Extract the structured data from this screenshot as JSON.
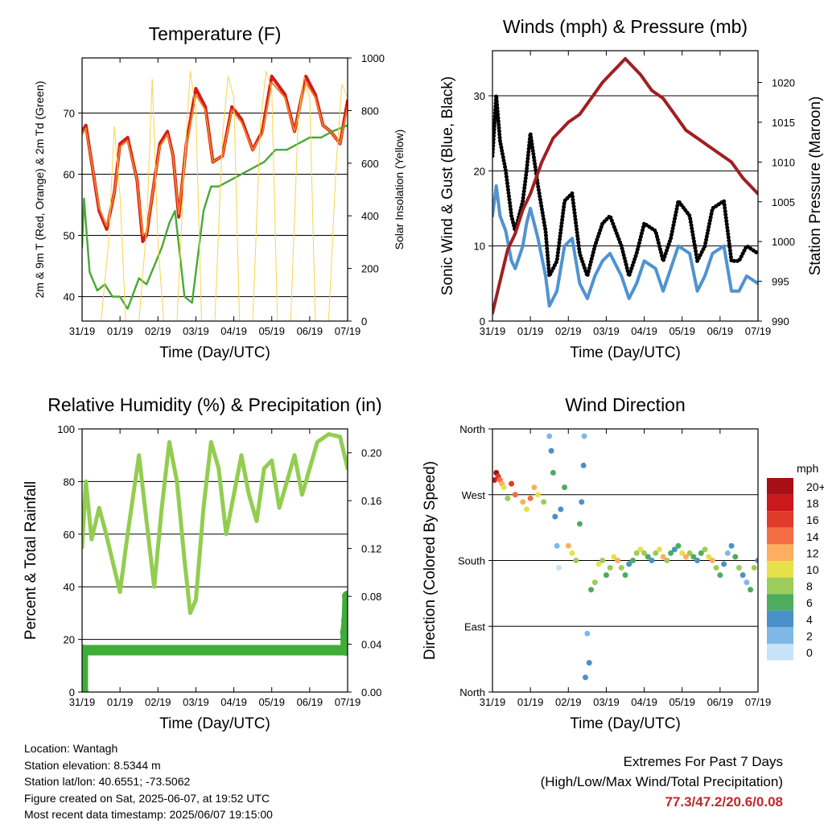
{
  "colors": {
    "temp_2m": "#d7191c",
    "temp_9m": "#f07f1e",
    "dewpoint": "#4aa936",
    "insolation": "#f7d548",
    "gust": "#000000",
    "wind": "#4f93cf",
    "pressure": "#a01f22",
    "humidity": "#92cd4f",
    "rainfall": "#3fae38",
    "extremes_text": "#c0282d"
  },
  "chart_data": [
    {
      "id": "temperature",
      "type": "line",
      "title": "Temperature (F)",
      "xlabel": "Time (Day/UTC)",
      "ylabel": "2m & 9m T (Red, Orange) & 2m Td (Green)",
      "y2label": "Solar Insolation (Yellow)",
      "x_tick_labels": [
        "31/19",
        "01/19",
        "02/19",
        "03/19",
        "04/19",
        "05/19",
        "06/19",
        "07/19"
      ],
      "ylim": [
        36,
        79
      ],
      "y_ticks": [
        40,
        50,
        60,
        70
      ],
      "y2lim": [
        0,
        1000
      ],
      "y2_ticks": [
        0,
        200,
        400,
        600,
        800,
        1000
      ],
      "grid": "horizontal",
      "series": [
        {
          "key": "temp_2m",
          "axis": "left",
          "x": [
            0,
            0.1,
            0.25,
            0.45,
            0.65,
            0.85,
            1.0,
            1.2,
            1.45,
            1.6,
            1.7,
            2.05,
            2.25,
            2.4,
            2.55,
            2.75,
            3.0,
            3.25,
            3.45,
            3.7,
            3.95,
            4.2,
            4.5,
            4.75,
            5.0,
            5.35,
            5.6,
            5.9,
            6.15,
            6.35,
            6.55,
            6.8,
            7.0
          ],
          "values": [
            67,
            68,
            62,
            54,
            51,
            57,
            65,
            66,
            59,
            49,
            50,
            65,
            67,
            63,
            53,
            65,
            74,
            71,
            62,
            63,
            71,
            69,
            64,
            67,
            76,
            73,
            67,
            76,
            73,
            68,
            67,
            65,
            72
          ]
        },
        {
          "key": "temp_9m",
          "axis": "left",
          "x": [
            0,
            0.1,
            0.25,
            0.45,
            0.65,
            0.85,
            1.0,
            1.2,
            1.45,
            1.6,
            1.7,
            2.05,
            2.25,
            2.4,
            2.55,
            2.75,
            3.0,
            3.25,
            3.45,
            3.7,
            3.95,
            4.2,
            4.5,
            4.75,
            5.0,
            5.35,
            5.6,
            5.9,
            6.15,
            6.35,
            6.55,
            6.8,
            7.0
          ],
          "values": [
            66.5,
            67.5,
            62,
            54.5,
            51.5,
            57,
            64.5,
            65.5,
            59,
            50,
            50.5,
            64.5,
            66.5,
            63,
            53.5,
            64.5,
            73,
            70.5,
            62,
            63,
            70.5,
            68.5,
            64,
            66.5,
            75,
            72.5,
            67,
            75,
            72.5,
            68,
            67,
            65,
            71
          ]
        },
        {
          "key": "dewpoint",
          "axis": "left",
          "x": [
            0,
            0.05,
            0.2,
            0.4,
            0.6,
            0.8,
            1.0,
            1.2,
            1.5,
            1.7,
            1.9,
            2.1,
            2.3,
            2.45,
            2.7,
            2.9,
            3.0,
            3.2,
            3.4,
            3.6,
            3.9,
            4.2,
            4.5,
            4.8,
            5.1,
            5.4,
            5.7,
            6.0,
            6.3,
            6.6,
            7.0
          ],
          "values": [
            48,
            56,
            44,
            41,
            42,
            40,
            40,
            38,
            43,
            42,
            45,
            48,
            52,
            54,
            40,
            39,
            44,
            54,
            58,
            58,
            59,
            60,
            61,
            62,
            64,
            64,
            65,
            66,
            66,
            67,
            68
          ]
        },
        {
          "key": "insolation",
          "axis": "right",
          "x": [
            0,
            0.5,
            0.7,
            0.85,
            1.0,
            1.15,
            1.3,
            1.5,
            1.7,
            1.85,
            2.0,
            2.15,
            2.3,
            2.5,
            2.7,
            2.85,
            3.0,
            3.15,
            3.3,
            3.5,
            3.7,
            3.85,
            4.0,
            4.15,
            4.3,
            4.5,
            4.7,
            4.85,
            5.0,
            5.15,
            5.3,
            5.5,
            5.7,
            5.85,
            6.0,
            6.15,
            6.3,
            6.5,
            6.7,
            6.85,
            7.0
          ],
          "values": [
            0,
            0,
            300,
            740,
            480,
            0,
            0,
            0,
            350,
            920,
            300,
            0,
            0,
            0,
            600,
            950,
            800,
            0,
            0,
            0,
            700,
            930,
            850,
            0,
            0,
            0,
            750,
            950,
            880,
            0,
            0,
            0,
            780,
            930,
            850,
            0,
            0,
            0,
            600,
            900,
            850
          ]
        }
      ]
    },
    {
      "id": "winds",
      "type": "scatter",
      "title": "Winds (mph) & Pressure (mb)",
      "xlabel": "Time (Day/UTC)",
      "ylabel": "Sonic Wind & Gust (Blue, Black)",
      "y2label": "Station Pressure (Maroon)",
      "x_tick_labels": [
        "31/19",
        "01/19",
        "02/19",
        "03/19",
        "04/19",
        "05/19",
        "06/19",
        "07/19"
      ],
      "ylim": [
        0,
        36
      ],
      "y_ticks": [
        0,
        10,
        20,
        30
      ],
      "y2lim": [
        990,
        1024
      ],
      "y2_ticks": [
        990,
        995,
        1000,
        1005,
        1010,
        1015,
        1020
      ],
      "grid": "horizontal",
      "series": [
        {
          "key": "gust",
          "axis": "left",
          "x": [
            0,
            0.1,
            0.2,
            0.35,
            0.5,
            0.6,
            0.8,
            0.9,
            1.0,
            1.2,
            1.4,
            1.5,
            1.7,
            1.9,
            2.1,
            2.3,
            2.5,
            2.7,
            2.9,
            3.1,
            3.4,
            3.6,
            3.8,
            4.0,
            4.3,
            4.5,
            4.7,
            4.9,
            5.2,
            5.4,
            5.6,
            5.8,
            6.1,
            6.3,
            6.5,
            6.7,
            7.0
          ],
          "values": [
            22,
            30,
            24,
            20,
            14,
            12,
            16,
            20,
            25,
            18,
            12,
            6,
            8,
            16,
            17,
            9,
            6,
            10,
            13,
            14,
            10,
            6,
            9,
            13,
            12,
            8,
            11,
            16,
            14,
            8,
            10,
            15,
            16,
            8,
            8,
            10,
            9
          ]
        },
        {
          "key": "wind",
          "axis": "left",
          "x": [
            0,
            0.1,
            0.2,
            0.35,
            0.5,
            0.6,
            0.8,
            0.9,
            1.0,
            1.2,
            1.4,
            1.5,
            1.7,
            1.9,
            2.1,
            2.3,
            2.5,
            2.7,
            2.9,
            3.1,
            3.4,
            3.6,
            3.8,
            4.0,
            4.3,
            4.5,
            4.7,
            4.9,
            5.2,
            5.4,
            5.6,
            5.8,
            6.1,
            6.3,
            6.5,
            6.7,
            7.0
          ],
          "values": [
            14,
            18,
            14,
            12,
            8,
            7,
            10,
            13,
            15,
            11,
            6,
            2,
            4,
            10,
            11,
            5,
            3,
            6,
            8,
            9,
            6,
            3,
            5,
            8,
            7,
            4,
            7,
            10,
            9,
            4,
            6,
            9,
            10,
            4,
            4,
            6,
            5
          ]
        },
        {
          "key": "pressure",
          "axis": "right",
          "x": [
            0,
            0.2,
            0.4,
            0.6,
            0.8,
            1.0,
            1.3,
            1.6,
            1.8,
            2.0,
            2.3,
            2.6,
            2.9,
            3.1,
            3.3,
            3.5,
            3.7,
            3.9,
            4.2,
            4.5,
            4.8,
            5.1,
            5.4,
            5.7,
            6.0,
            6.3,
            6.6,
            6.8,
            7.0
          ],
          "values": [
            991,
            995,
            999,
            1001,
            1004,
            1006,
            1010,
            1013,
            1014,
            1015,
            1016,
            1018,
            1020,
            1021,
            1022,
            1023,
            1022,
            1021,
            1019,
            1018,
            1016,
            1014,
            1013,
            1012,
            1011,
            1010,
            1008,
            1007,
            1006
          ]
        }
      ]
    },
    {
      "id": "humidity",
      "type": "line",
      "title": "Relative Humidity (%) & Precipitation (in)",
      "xlabel": "Time (Day/UTC)",
      "ylabel": "Percent & Total Rainfall",
      "x_tick_labels": [
        "31/19",
        "01/19",
        "02/19",
        "03/19",
        "04/19",
        "05/19",
        "06/19",
        "07/19"
      ],
      "ylim": [
        0,
        100
      ],
      "y_ticks": [
        0,
        20,
        40,
        60,
        80,
        100
      ],
      "y2lim": [
        0,
        0.22
      ],
      "y2_ticks": [
        "0.00",
        "0.04",
        "0.08",
        "0.12",
        "0.16",
        "0.20"
      ],
      "grid": "horizontal",
      "series": [
        {
          "key": "humidity",
          "axis": "left",
          "x": [
            0,
            0.1,
            0.25,
            0.45,
            0.6,
            0.8,
            1.0,
            1.2,
            1.5,
            1.7,
            1.9,
            2.1,
            2.3,
            2.5,
            2.7,
            2.85,
            3.0,
            3.2,
            3.4,
            3.6,
            3.8,
            4.0,
            4.2,
            4.4,
            4.6,
            4.8,
            5.0,
            5.2,
            5.4,
            5.6,
            5.8,
            6.0,
            6.2,
            6.5,
            6.8,
            7.0
          ],
          "values": [
            55,
            80,
            58,
            70,
            62,
            50,
            38,
            60,
            90,
            65,
            40,
            70,
            95,
            80,
            50,
            30,
            35,
            70,
            95,
            85,
            60,
            75,
            90,
            75,
            65,
            85,
            88,
            70,
            80,
            90,
            75,
            85,
            95,
            98,
            97,
            85
          ]
        },
        {
          "key": "rainfall",
          "axis": "right",
          "x": [
            0,
            0.02,
            0.02,
            6.95,
            6.95,
            6.98,
            7.0
          ],
          "values": [
            0.0,
            0.0,
            0.035,
            0.035,
            0.05,
            0.06,
            0.08
          ]
        }
      ]
    },
    {
      "id": "direction",
      "type": "scatter",
      "title": "Wind Direction",
      "xlabel": "Time (Day/UTC)",
      "ylabel": "Direction (Colored By Speed)",
      "x_tick_labels": [
        "31/19",
        "01/19",
        "02/19",
        "03/19",
        "04/19",
        "05/19",
        "06/19",
        "07/19"
      ],
      "ylim": [
        0,
        360
      ],
      "y_tick_values": [
        0,
        90,
        180,
        270,
        360
      ],
      "y_tick_labels": [
        "North",
        "East",
        "South",
        "West",
        "North"
      ],
      "grid": "horizontal",
      "colorbar": {
        "title": "mph",
        "labels": [
          "20+",
          "18",
          "16",
          "14",
          "12",
          "10",
          "8",
          "6",
          "4",
          "2",
          "0"
        ],
        "colors": [
          "#a50f15",
          "#cb181d",
          "#e03a2a",
          "#f46d43",
          "#fdae61",
          "#e6e14a",
          "#9ccc5a",
          "#4dac5d",
          "#4a90c9",
          "#7fb8e6",
          "#c6e3f7"
        ]
      },
      "points": {
        "x": [
          0.05,
          0.1,
          0.15,
          0.2,
          0.25,
          0.3,
          0.4,
          0.5,
          0.6,
          0.8,
          0.9,
          1.0,
          1.1,
          1.2,
          1.35,
          1.5,
          1.55,
          1.6,
          1.65,
          1.7,
          1.75,
          1.8,
          1.9,
          2.0,
          2.1,
          2.2,
          2.3,
          2.35,
          2.4,
          2.42,
          2.45,
          2.5,
          2.55,
          2.6,
          2.7,
          2.8,
          2.9,
          3.0,
          3.1,
          3.2,
          3.3,
          3.4,
          3.5,
          3.6,
          3.7,
          3.8,
          3.9,
          4.0,
          4.1,
          4.2,
          4.3,
          4.4,
          4.5,
          4.6,
          4.7,
          4.8,
          4.9,
          5.0,
          5.1,
          5.2,
          5.3,
          5.4,
          5.5,
          5.6,
          5.7,
          5.8,
          5.9,
          6.0,
          6.1,
          6.2,
          6.3,
          6.4,
          6.5,
          6.6,
          6.7,
          6.8,
          6.9,
          7.0
        ],
        "values": [
          290,
          300,
          295,
          290,
          285,
          280,
          265,
          285,
          270,
          260,
          250,
          265,
          280,
          270,
          260,
          350,
          330,
          300,
          240,
          200,
          170,
          250,
          280,
          200,
          190,
          180,
          230,
          260,
          310,
          350,
          20,
          80,
          40,
          140,
          150,
          175,
          180,
          160,
          170,
          185,
          180,
          170,
          160,
          175,
          180,
          190,
          195,
          190,
          185,
          180,
          190,
          195,
          185,
          180,
          190,
          195,
          200,
          190,
          185,
          190,
          185,
          180,
          190,
          195,
          185,
          180,
          170,
          160,
          175,
          190,
          200,
          185,
          170,
          160,
          150,
          140,
          170,
          180
        ],
        "speeds": [
          18,
          20,
          16,
          14,
          12,
          10,
          8,
          16,
          14,
          12,
          10,
          14,
          12,
          10,
          8,
          2,
          4,
          6,
          4,
          2,
          0,
          4,
          6,
          12,
          10,
          8,
          6,
          4,
          4,
          2,
          4,
          2,
          4,
          6,
          8,
          10,
          8,
          6,
          8,
          10,
          12,
          8,
          6,
          4,
          6,
          8,
          10,
          8,
          6,
          4,
          8,
          10,
          12,
          8,
          6,
          4,
          6,
          10,
          12,
          8,
          6,
          4,
          6,
          8,
          10,
          12,
          8,
          6,
          4,
          2,
          4,
          6,
          8,
          4,
          2,
          6,
          8,
          4
        ]
      }
    }
  ],
  "info": {
    "location": "Location: Wantagh",
    "elevation": "Station elevation: 8.5344 m",
    "latlon": "Station lat/lon: 40.6551; -73.5062",
    "created": "Figure created on Sat, 2025-06-07, at 19:52 UTC",
    "recent": "Most recent data timestamp: 2025/06/07 19:15:00"
  },
  "extremes": {
    "title": "Extremes For Past 7 Days",
    "subtitle": "(High/Low/Max Wind/Total Precipitation)",
    "values": "77.3/47.2/20.6/0.08"
  }
}
